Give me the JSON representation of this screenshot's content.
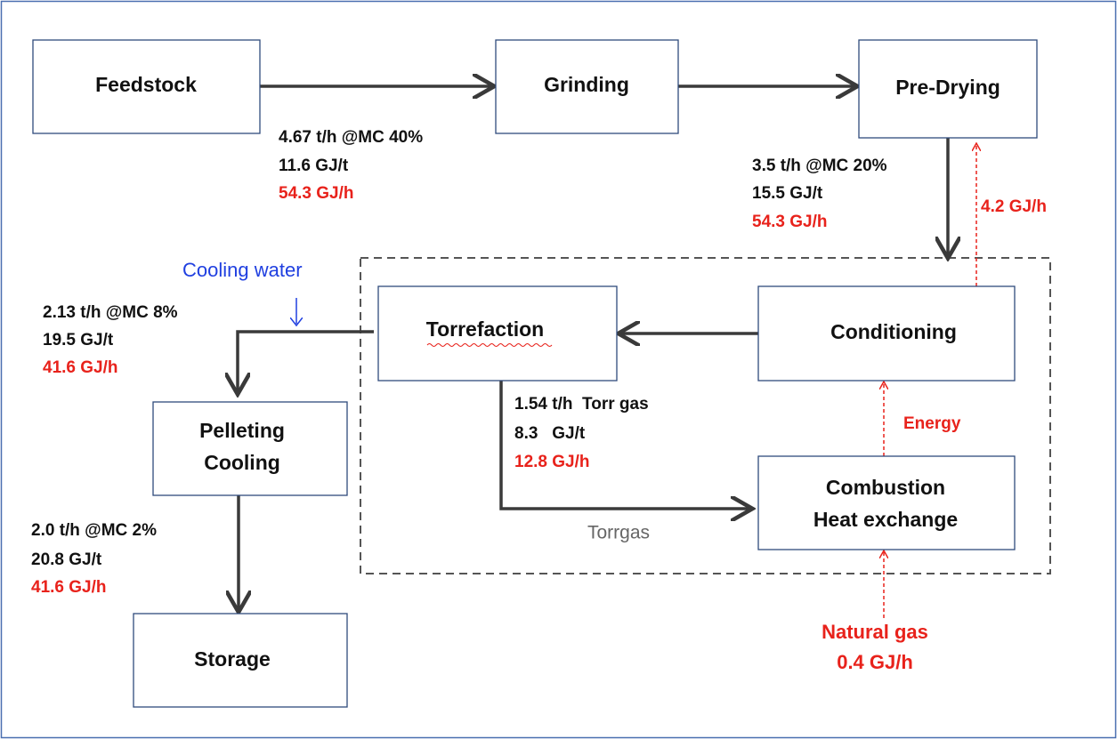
{
  "nodes": [
    {
      "lines": [
        "Feedstock"
      ]
    },
    {
      "lines": [
        "Grinding"
      ]
    },
    {
      "lines": [
        "Pre-Drying"
      ]
    },
    {
      "lines": [
        "Torrefaction"
      ]
    },
    {
      "lines": [
        "Conditioning"
      ]
    },
    {
      "lines": [
        "Pelleting",
        "Cooling"
      ]
    },
    {
      "lines": [
        "Combustion",
        "Heat exchange"
      ]
    },
    {
      "lines": [
        "Storage"
      ]
    }
  ],
  "flows": [
    {
      "lines": [
        "4.67 t/h @MC 40%",
        "11.6 GJ/t",
        "54.3 GJ/h"
      ]
    },
    {
      "lines": [
        "3.5 t/h @MC 20%",
        "15.5 GJ/t",
        "54.3 GJ/h"
      ]
    },
    {
      "lines": [
        "2.13 t/h @MC 8%",
        "19.5 GJ/t",
        "41.6 GJ/h"
      ]
    },
    {
      "lines": [
        "1.54 t/h  Torr gas",
        "8.3   GJ/t",
        "12.8 GJ/h"
      ]
    },
    {
      "lines": [
        "2.0 t/h @MC 2%",
        "20.8 GJ/t",
        "41.6 GJ/h"
      ]
    }
  ],
  "labels": {
    "drying_energy": "4.2 GJ/h",
    "cooling_water": "Cooling water",
    "energy": "Energy",
    "torrgas": "Torrgas",
    "natural_gas": "Natural gas",
    "natural_gas_energy": "0.4 GJ/h"
  }
}
